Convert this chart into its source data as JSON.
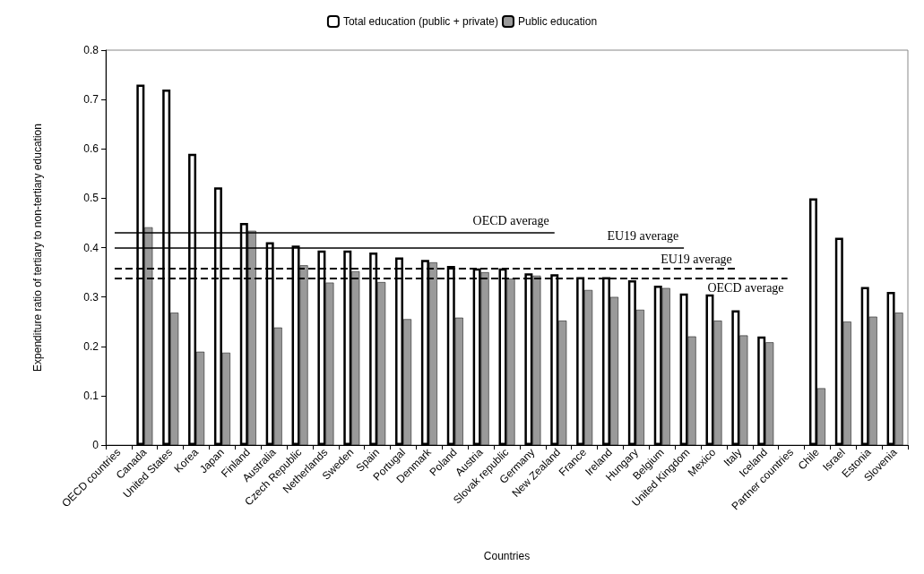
{
  "chart_data": {
    "type": "bar",
    "xlabel": "Countries",
    "ylabel": "Expenditure ratio of tertiary to non-tertiary education",
    "categories": [
      "OECD countries",
      "Canada",
      "United States",
      "Korea",
      "Japan",
      "Finland",
      "Australia",
      "Czech Republic",
      "Netherlands",
      "Sweden",
      "Spain",
      "Portugal",
      "Denmark",
      "Poland",
      "Austria",
      "Slovak republic",
      "Germany",
      "New Zealand",
      "France",
      "Ireland",
      "Hungary",
      "Belgium",
      "United Kingdom",
      "Mexico",
      "Italy",
      "Iceland",
      "Partner countries",
      "Chile",
      "Israel",
      "Estonia",
      "Slovenia"
    ],
    "series": [
      {
        "name": "Total education (public + private)",
        "color": "#ffffff",
        "values": [
          null,
          0.73,
          0.72,
          0.59,
          0.522,
          0.45,
          0.411,
          0.404,
          0.394,
          0.394,
          0.39,
          0.38,
          0.375,
          0.363,
          0.358,
          0.358,
          0.348,
          0.346,
          0.34,
          0.34,
          0.334,
          0.323,
          0.307,
          0.305,
          0.273,
          0.22,
          null,
          0.5,
          0.42,
          0.32,
          0.31
        ]
      },
      {
        "name": "Public education",
        "color": "#9a9a9a",
        "values": [
          null,
          0.441,
          0.268,
          0.189,
          0.187,
          0.434,
          0.238,
          0.364,
          0.329,
          0.352,
          0.33,
          0.255,
          0.37,
          0.258,
          0.35,
          0.337,
          0.343,
          0.252,
          0.314,
          0.3,
          0.274,
          0.318,
          0.22,
          0.252,
          0.222,
          0.208,
          null,
          0.115,
          0.25,
          0.26,
          0.268
        ]
      }
    ],
    "ylim": [
      0,
      0.8
    ],
    "yticks": [
      0,
      0.1,
      0.2,
      0.3,
      0.4,
      0.5,
      0.6,
      0.7,
      0.8
    ],
    "grid": false,
    "legend": "top",
    "ref_lines": [
      {
        "axis": "y",
        "value": 0.43,
        "label": "OECD average",
        "line_style": "solid"
      },
      {
        "axis": "y",
        "value": 0.4,
        "label": "EU19 average",
        "line_style": "solid"
      },
      {
        "axis": "y",
        "value": 0.357,
        "label": "EU19 average",
        "line_style": "dashed"
      },
      {
        "axis": "y",
        "value": 0.338,
        "label": "OECD average",
        "line_style": "dashed"
      }
    ]
  }
}
